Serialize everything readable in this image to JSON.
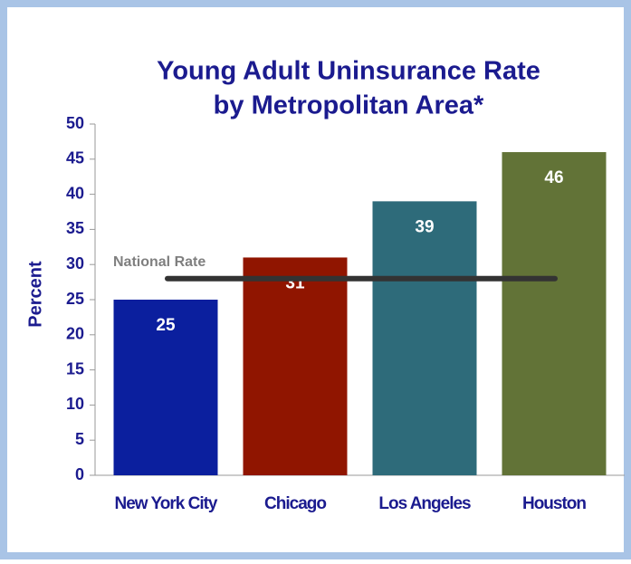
{
  "chart_data": {
    "type": "bar",
    "title": [
      "Young Adult Uninsurance Rate",
      "by Metropolitan Area*"
    ],
    "ylabel": "Percent",
    "categories": [
      "New York City",
      "Chicago",
      "Los Angeles",
      "Houston"
    ],
    "values": [
      25,
      31,
      39,
      46
    ],
    "colors": [
      "#0b1f9e",
      "#901500",
      "#2e6b7a",
      "#627337"
    ],
    "ylim": [
      0,
      50
    ],
    "yticks": [
      0,
      5,
      10,
      15,
      20,
      25,
      30,
      35,
      40,
      45,
      50
    ],
    "reference_line": {
      "label": "National Rate",
      "value": 28
    }
  }
}
